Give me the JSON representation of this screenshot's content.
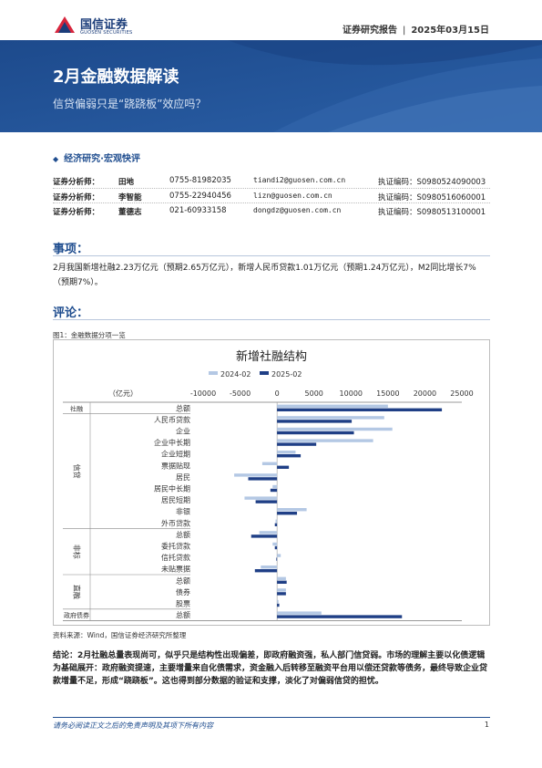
{
  "header": {
    "logo_cn": "国信证券",
    "logo_en": "GUOSEN SECURITIES",
    "report_type": "证券研究报告",
    "date": "2025年03月15日"
  },
  "banner": {
    "title": "2月金融数据解读",
    "subtitle": "信贷偏弱只是“跷跷板”效应吗？"
  },
  "category": "经济研究·宏观快评",
  "analysts": [
    {
      "role": "证券分析师：",
      "name": "田地",
      "phone": "0755-81982035",
      "email": "tiandi2@guosen.com.cn",
      "cert": "执证编码：S0980524090003"
    },
    {
      "role": "证券分析师：",
      "name": "李智能",
      "phone": "0755-22940456",
      "email": "lizn@guosen.com.cn",
      "cert": "执证编码：S0980516060001"
    },
    {
      "role": "证券分析师：",
      "name": "董德志",
      "phone": "021-60933158",
      "email": "dongdz@guosen.com.cn",
      "cert": "执证编码：S0980513100001"
    }
  ],
  "section_event": {
    "heading": "事项：",
    "text": "2月我国新增社融2.23万亿元（预期2.65万亿元），新增人民币贷款1.01万亿元（预期1.24万亿元），M2同比增长7%（预期7%）。"
  },
  "section_comment": {
    "heading": "评论："
  },
  "figure": {
    "caption": "图1：金融数据分项一览",
    "source": "资料来源：Wind，国信证券经济研究所整理"
  },
  "chart_data": {
    "type": "bar",
    "orientation": "horizontal",
    "title": "新增社融结构",
    "unit_label": "（亿元）",
    "xlim": [
      -10000,
      25000
    ],
    "x_ticks": [
      -10000,
      -5000,
      0,
      5000,
      10000,
      15000,
      20000,
      25000
    ],
    "legend_position": "top",
    "categories": [
      "总额",
      "人民币贷款",
      "企业",
      "企业中长期",
      "企业短期",
      "票据贴现",
      "居民",
      "居民中长期",
      "居民短期",
      "非银",
      "外币贷款",
      "总额",
      "委托贷款",
      "信托贷款",
      "未贴票据",
      "总额",
      "债券",
      "股票",
      "总额"
    ],
    "groups": [
      {
        "label": "社融",
        "rows": [
          0,
          0
        ]
      },
      {
        "label": "信贷",
        "rows": [
          1,
          10
        ]
      },
      {
        "label": "非标",
        "rows": [
          11,
          14
        ]
      },
      {
        "label": "直融",
        "rows": [
          15,
          17
        ]
      },
      {
        "label": "政府债券",
        "rows": [
          18,
          18
        ]
      }
    ],
    "series": [
      {
        "name": "2024-02",
        "color": "#b4c8e4",
        "values": [
          15000,
          14500,
          15600,
          13000,
          2500,
          -2000,
          -5800,
          -600,
          -4400,
          4000,
          -200,
          -2400,
          -600,
          500,
          -2200,
          1200,
          1200,
          200,
          6000
        ]
      },
      {
        "name": "2025-02",
        "color": "#1f3f86",
        "values": [
          22300,
          10100,
          10400,
          5300,
          3200,
          1600,
          -3900,
          -900,
          -2900,
          2700,
          -300,
          -3500,
          -300,
          -100,
          -3000,
          1300,
          1200,
          300,
          16900
        ]
      }
    ]
  },
  "conclusion": "结论：2月社融总量表现尚可，似乎只是结构性出现偏差，即政府融资强，私人部门信贷弱。市场的理解主要以化债逻辑为基础展开：政府融资提速，主要增量来自化债需求，资金融入后转移至融资平台用以偿还贷款等债务，最终导致企业贷款增量不足，形成“跷跷板”。这也得到部分数据的验证和支撑，淡化了对偏弱信贷的担忧。",
  "footer": {
    "disclaimer": "请务必阅读正文之后的免责声明及其项下所有内容",
    "page": "1"
  },
  "colors": {
    "brand": "#1f4d8f",
    "accent_red": "#d7263d"
  }
}
